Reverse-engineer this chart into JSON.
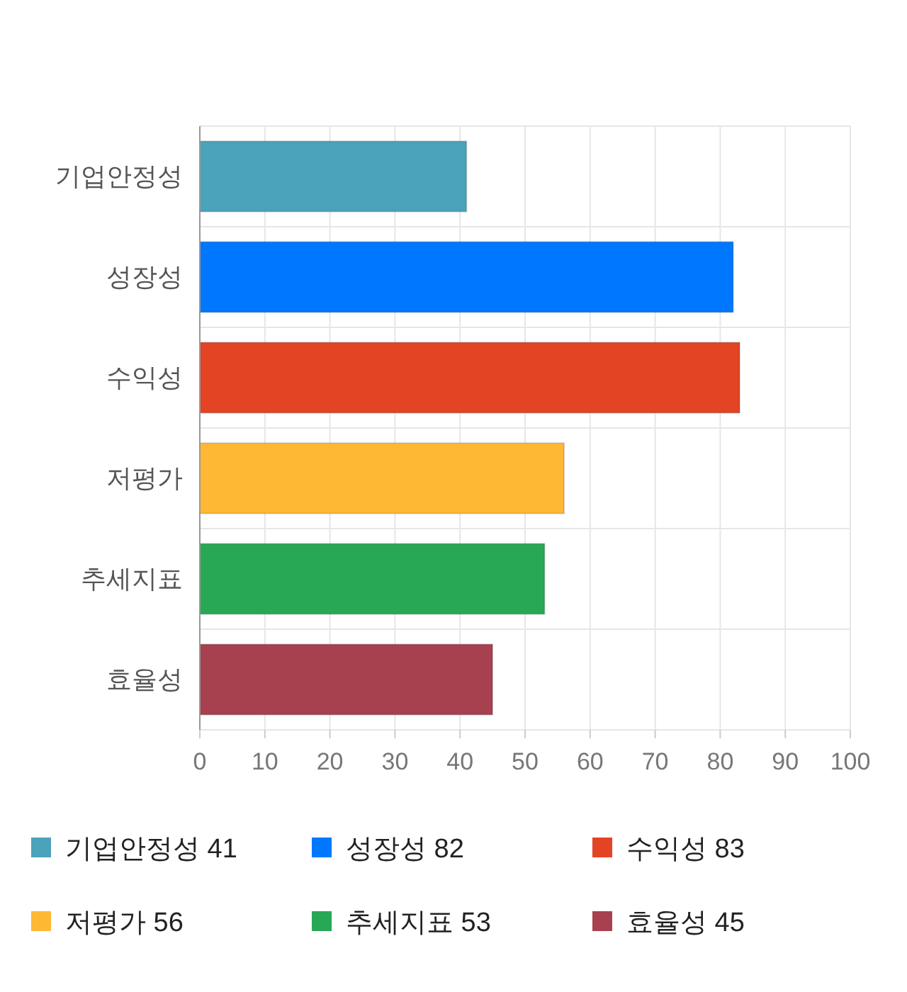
{
  "chart_data": {
    "type": "bar",
    "orientation": "horizontal",
    "stacked": true,
    "categories": [
      "기업안정성",
      "성장성",
      "수익성",
      "저평가",
      "추세지표",
      "효율성"
    ],
    "series": [
      {
        "name": "기업안정성 41",
        "color": "#4aa3ba",
        "values": [
          41,
          null,
          null,
          null,
          null,
          null
        ]
      },
      {
        "name": "성장성 82",
        "color": "#0077ff",
        "values": [
          null,
          82,
          null,
          null,
          null,
          null
        ]
      },
      {
        "name": "수익성 83",
        "color": "#e24424",
        "values": [
          null,
          null,
          83,
          null,
          null,
          null
        ]
      },
      {
        "name": "저평가 56",
        "color": "#ffb833",
        "values": [
          null,
          null,
          null,
          56,
          null,
          null
        ]
      },
      {
        "name": "추세지표 53",
        "color": "#28a855",
        "values": [
          null,
          null,
          null,
          null,
          53,
          null
        ]
      },
      {
        "name": "효율성 45",
        "color": "#a8414f",
        "values": [
          null,
          null,
          null,
          null,
          null,
          45
        ]
      }
    ],
    "xlim": [
      0,
      100
    ],
    "xticks": [
      0,
      10,
      20,
      30,
      40,
      50,
      60,
      70,
      80,
      90,
      100
    ],
    "grid": true,
    "legend": "bottom"
  }
}
